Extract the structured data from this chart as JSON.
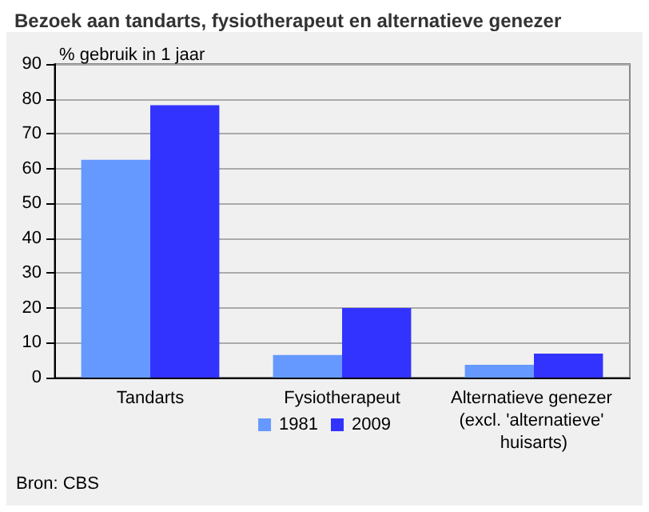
{
  "chart_data": {
    "type": "bar",
    "title": "Bezoek aan tandarts, fysiotherapeut en alternatieve genezer",
    "ylabel": "% gebruik in 1 jaar",
    "categories": [
      "Tandarts",
      "Fysiotherapeut",
      "Alternatieve genezer (excl. 'alternatieve' huisarts)"
    ],
    "series": [
      {
        "name": "1981",
        "color": "#6699ff",
        "values": [
          62.5,
          6.5,
          3.7
        ]
      },
      {
        "name": "2009",
        "color": "#3333ff",
        "values": [
          78.2,
          20,
          6.9
        ]
      }
    ],
    "ylim": [
      0,
      90
    ],
    "yticks": [
      0,
      10,
      20,
      30,
      40,
      50,
      60,
      70,
      80,
      90
    ],
    "grid": "y",
    "legend": "bottom",
    "annotations": [
      "Bron: CBS"
    ]
  }
}
